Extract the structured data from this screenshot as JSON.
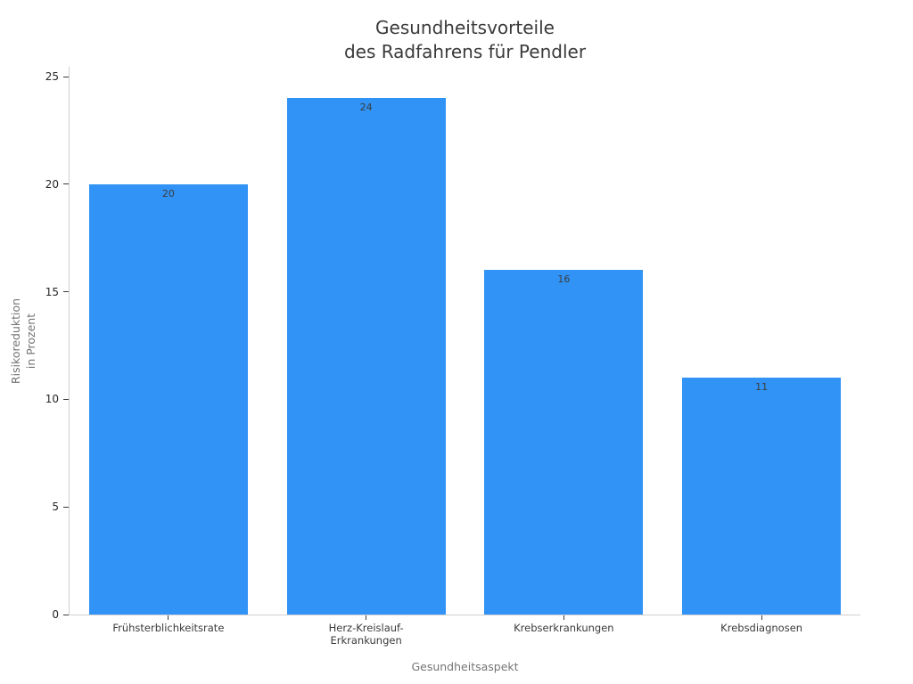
{
  "chart_data": {
    "type": "bar",
    "title": "Gesundheitsvorteile\ndes Radfahrens für Pendler",
    "xlabel": "Gesundheitsaspekt",
    "ylabel": "Risikoreduktion\nin Prozent",
    "categories": [
      "Frühsterblichkeitsrate",
      "Herz-Kreislauf-\nErkrankungen",
      "Krebserkrankungen",
      "Krebsdiagnosen"
    ],
    "values": [
      20,
      24,
      16,
      11
    ],
    "value_labels": [
      "20",
      "24",
      "16",
      "11"
    ],
    "yticks": [
      0,
      5,
      10,
      15,
      20,
      25
    ],
    "ylim": [
      0,
      25
    ],
    "bar_color": "#3093F5",
    "grid": false,
    "legend": "none"
  }
}
